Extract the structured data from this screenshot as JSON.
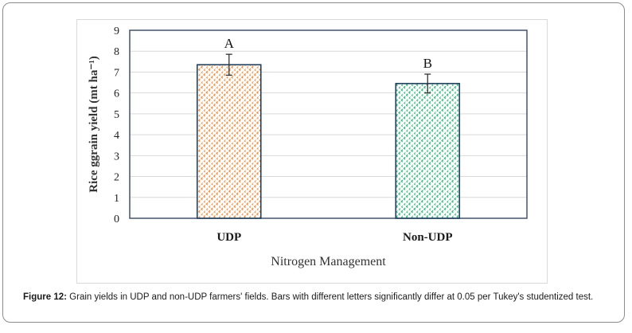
{
  "chart_data": {
    "type": "bar",
    "categories": [
      "UDP",
      "Non-UDP"
    ],
    "values": [
      7.35,
      6.45
    ],
    "error": [
      0.5,
      0.45
    ],
    "significance_letters": [
      "A",
      "B"
    ],
    "xlabel": "Nitrogen Management",
    "ylabel": "Rice ggrain yield (mt ha⁻¹)",
    "ylim": [
      0,
      9
    ],
    "yticks": [
      "0",
      "1",
      "2",
      "3",
      "4",
      "5",
      "6",
      "7",
      "8",
      "9"
    ],
    "grid": true,
    "bar_colors": [
      "#f08a3c",
      "#2bb673"
    ],
    "pattern": "hatched"
  },
  "caption": {
    "label": "Figure 12:",
    "text": "Grain yields in UDP and non-UDP farmers' fields. Bars with different letters significantly differ at 0.05 per Tukey's studentized test."
  }
}
